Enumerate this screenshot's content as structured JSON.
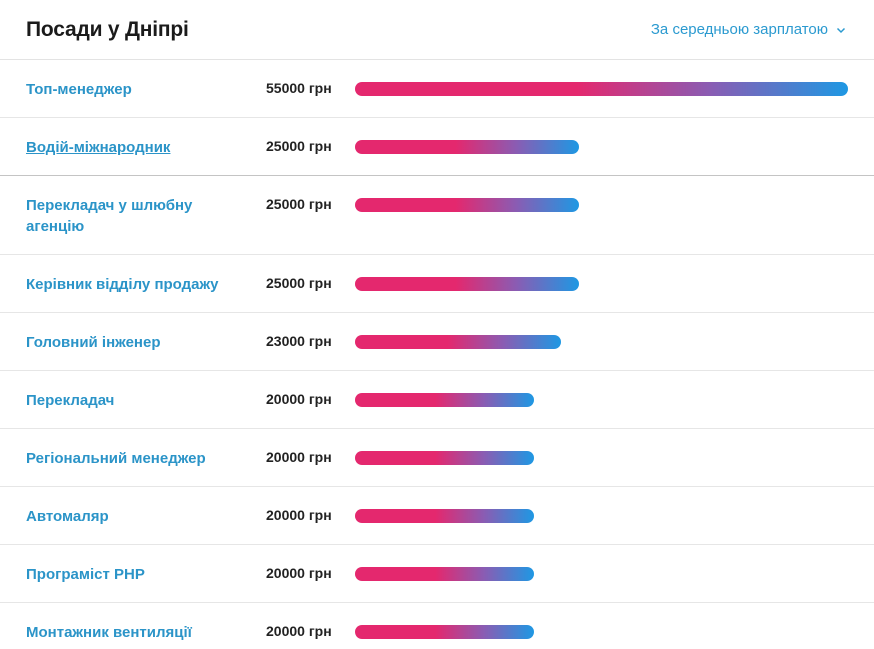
{
  "header": {
    "title": "Посади у Дніпрі",
    "sort_label": "За середньою зарплатою"
  },
  "jobs": [
    {
      "title": "Топ-менеджер",
      "salary": "55000 грн",
      "value": 55000
    },
    {
      "title": "Водій-міжнародник",
      "salary": "25000 грн",
      "value": 25000
    },
    {
      "title": "Перекладач у шлюбну агенцію",
      "salary": "25000 грн",
      "value": 25000
    },
    {
      "title": "Керівник відділу продажу",
      "salary": "25000 грн",
      "value": 25000
    },
    {
      "title": "Головний інженер",
      "salary": "23000 грн",
      "value": 23000
    },
    {
      "title": "Перекладач",
      "salary": "20000 грн",
      "value": 20000
    },
    {
      "title": "Регіональний менеджер",
      "salary": "20000 грн",
      "value": 20000
    },
    {
      "title": "Автомаляр",
      "salary": "20000 грн",
      "value": 20000
    },
    {
      "title": "Програміст PHP",
      "salary": "20000 грн",
      "value": 20000
    },
    {
      "title": "Монтажник вентиляції",
      "salary": "20000 грн",
      "value": 20000
    }
  ],
  "colors": {
    "link": "#2b94c8",
    "bar_start": "#e4286e",
    "bar_end": "#1e98e3"
  }
}
